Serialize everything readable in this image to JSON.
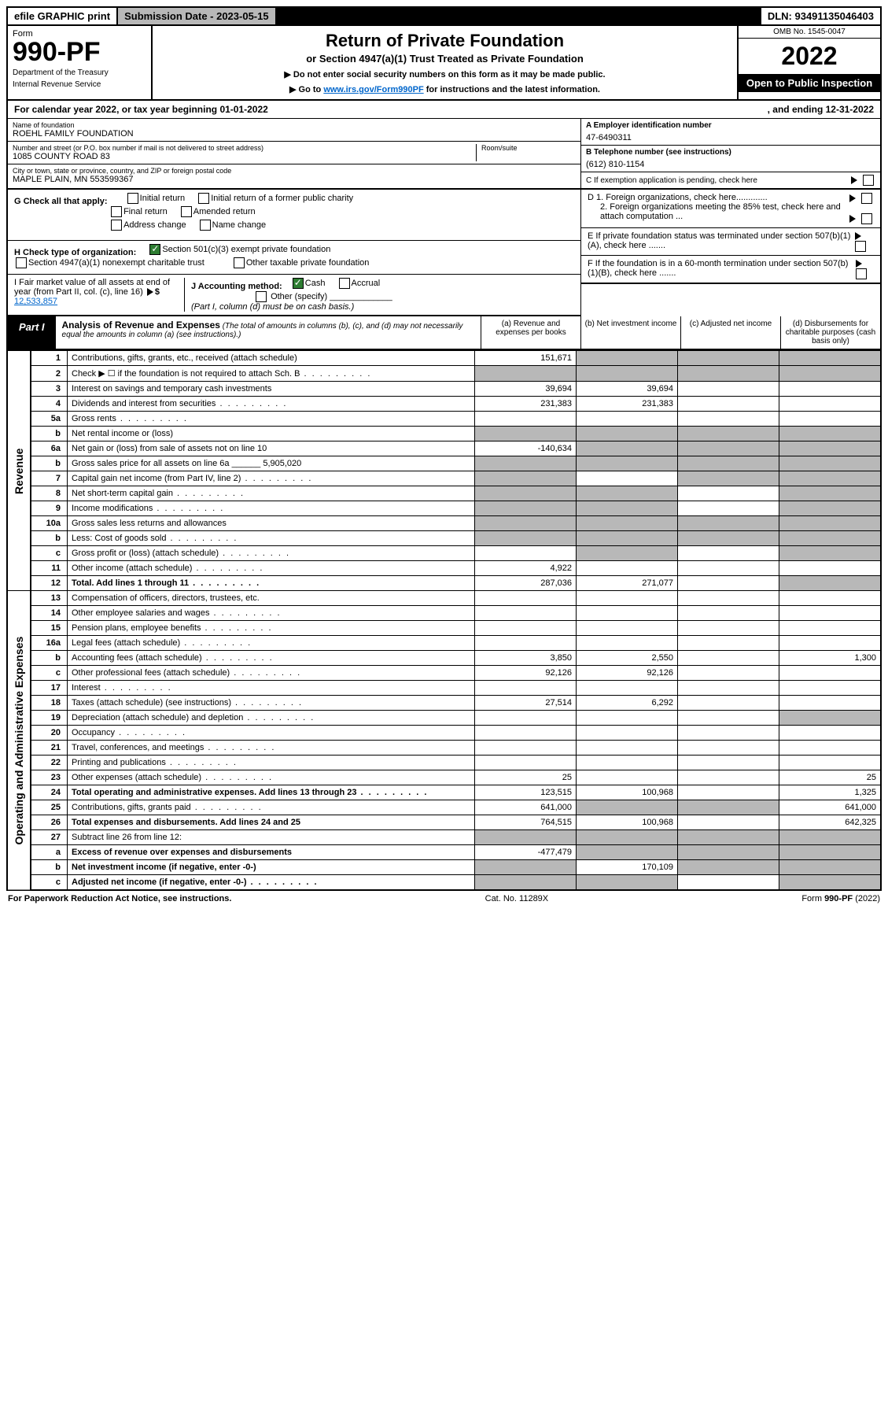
{
  "top": {
    "efile": "efile GRAPHIC print",
    "sub_label": "Submission Date - 2023-05-15",
    "dln": "DLN: 93491135046403"
  },
  "header": {
    "form": "Form",
    "number": "990-PF",
    "dept": "Department of the Treasury",
    "irs": "Internal Revenue Service",
    "title": "Return of Private Foundation",
    "sub1": "or Section 4947(a)(1) Trust Treated as Private Foundation",
    "sub2a": "▶ Do not enter social security numbers on this form as it may be made public.",
    "sub2b": "▶ Go to ",
    "link": "www.irs.gov/Form990PF",
    "sub2c": " for instructions and the latest information.",
    "omb": "OMB No. 1545-0047",
    "year": "2022",
    "inspect": "Open to Public Inspection"
  },
  "cal": {
    "left": "For calendar year 2022, or tax year beginning 01-01-2022",
    "right": ", and ending 12-31-2022"
  },
  "info": {
    "name_lbl": "Name of foundation",
    "name": "ROEHL FAMILY FOUNDATION",
    "addr_lbl": "Number and street (or P.O. box number if mail is not delivered to street address)",
    "addr": "1085 COUNTY ROAD 83",
    "room_lbl": "Room/suite",
    "city_lbl": "City or town, state or province, country, and ZIP or foreign postal code",
    "city": "MAPLE PLAIN, MN  553599367",
    "a_lbl": "A Employer identification number",
    "a_val": "47-6490311",
    "b_lbl": "B Telephone number (see instructions)",
    "b_val": "(612) 810-1154",
    "c_lbl": "C If exemption application is pending, check here",
    "d1": "D 1. Foreign organizations, check here.............",
    "d2": "2. Foreign organizations meeting the 85% test, check here and attach computation ...",
    "e": "E  If private foundation status was terminated under section 507(b)(1)(A), check here .......",
    "f": "F  If the foundation is in a 60-month termination under section 507(b)(1)(B), check here .......",
    "g": "G Check all that apply:",
    "g_opts": [
      "Initial return",
      "Initial return of a former public charity",
      "Final return",
      "Amended return",
      "Address change",
      "Name change"
    ],
    "h": "H Check type of organization:",
    "h1": "Section 501(c)(3) exempt private foundation",
    "h2": "Section 4947(a)(1) nonexempt charitable trust",
    "h3": "Other taxable private foundation",
    "i": "I Fair market value of all assets at end of year (from Part II, col. (c), line 16)",
    "i_val": "12,533,857",
    "j": "J Accounting method:",
    "j_opts": [
      "Cash",
      "Accrual"
    ],
    "j_other": "Other (specify)",
    "j_note": "(Part I, column (d) must be on cash basis.)"
  },
  "part1": {
    "label": "Part I",
    "title": "Analysis of Revenue and Expenses",
    "note": "(The total of amounts in columns (b), (c), and (d) may not necessarily equal the amounts in column (a) (see instructions).)",
    "col_a": "(a) Revenue and expenses per books",
    "col_b": "(b) Net investment income",
    "col_c": "(c) Adjusted net income",
    "col_d": "(d) Disbursements for charitable purposes (cash basis only)"
  },
  "side": {
    "rev": "Revenue",
    "exp": "Operating and Administrative Expenses"
  },
  "rows": [
    {
      "n": "1",
      "d": "Contributions, gifts, grants, etc., received (attach schedule)",
      "a": "151,671",
      "shade": [
        "b",
        "c",
        "d"
      ]
    },
    {
      "n": "2",
      "d": "Check ▶ ☐ if the foundation is not required to attach Sch. B",
      "allshade": true,
      "dots": true
    },
    {
      "n": "3",
      "d": "Interest on savings and temporary cash investments",
      "a": "39,694",
      "b": "39,694"
    },
    {
      "n": "4",
      "d": "Dividends and interest from securities",
      "a": "231,383",
      "b": "231,383",
      "dots": true
    },
    {
      "n": "5a",
      "d": "Gross rents",
      "dots": true
    },
    {
      "n": "b",
      "d": "Net rental income or (loss)",
      "shade": [
        "a",
        "b",
        "c",
        "d"
      ]
    },
    {
      "n": "6a",
      "d": "Net gain or (loss) from sale of assets not on line 10",
      "a": "-140,634",
      "shade": [
        "b",
        "c",
        "d"
      ]
    },
    {
      "n": "b",
      "d": "Gross sales price for all assets on line 6a ______ 5,905,020",
      "shade": [
        "a",
        "b",
        "c",
        "d"
      ]
    },
    {
      "n": "7",
      "d": "Capital gain net income (from Part IV, line 2)",
      "shade": [
        "a",
        "c",
        "d"
      ],
      "dots": true
    },
    {
      "n": "8",
      "d": "Net short-term capital gain",
      "shade": [
        "a",
        "b",
        "d"
      ],
      "dots": true
    },
    {
      "n": "9",
      "d": "Income modifications",
      "shade": [
        "a",
        "b",
        "d"
      ],
      "dots": true
    },
    {
      "n": "10a",
      "d": "Gross sales less returns and allowances",
      "shade": [
        "a",
        "b",
        "c",
        "d"
      ]
    },
    {
      "n": "b",
      "d": "Less: Cost of goods sold",
      "shade": [
        "a",
        "b",
        "c",
        "d"
      ],
      "dots": true
    },
    {
      "n": "c",
      "d": "Gross profit or (loss) (attach schedule)",
      "shade": [
        "b",
        "d"
      ],
      "dots": true
    },
    {
      "n": "11",
      "d": "Other income (attach schedule)",
      "a": "4,922",
      "dots": true
    },
    {
      "n": "12",
      "d": "Total. Add lines 1 through 11",
      "a": "287,036",
      "b": "271,077",
      "bold": true,
      "shade": [
        "d"
      ],
      "dots": true
    }
  ],
  "exp_rows": [
    {
      "n": "13",
      "d": "Compensation of officers, directors, trustees, etc."
    },
    {
      "n": "14",
      "d": "Other employee salaries and wages",
      "dots": true
    },
    {
      "n": "15",
      "d": "Pension plans, employee benefits",
      "dots": true
    },
    {
      "n": "16a",
      "d": "Legal fees (attach schedule)",
      "dots": true
    },
    {
      "n": "b",
      "d": "Accounting fees (attach schedule)",
      "a": "3,850",
      "b": "2,550",
      "dv": "1,300",
      "dots": true
    },
    {
      "n": "c",
      "d": "Other professional fees (attach schedule)",
      "a": "92,126",
      "b": "92,126",
      "dots": true
    },
    {
      "n": "17",
      "d": "Interest",
      "dots": true
    },
    {
      "n": "18",
      "d": "Taxes (attach schedule) (see instructions)",
      "a": "27,514",
      "b": "6,292",
      "dots": true
    },
    {
      "n": "19",
      "d": "Depreciation (attach schedule) and depletion",
      "shade": [
        "d"
      ],
      "dots": true
    },
    {
      "n": "20",
      "d": "Occupancy",
      "dots": true
    },
    {
      "n": "21",
      "d": "Travel, conferences, and meetings",
      "dots": true
    },
    {
      "n": "22",
      "d": "Printing and publications",
      "dots": true
    },
    {
      "n": "23",
      "d": "Other expenses (attach schedule)",
      "a": "25",
      "dv": "25",
      "dots": true
    },
    {
      "n": "24",
      "d": "Total operating and administrative expenses. Add lines 13 through 23",
      "a": "123,515",
      "b": "100,968",
      "dv": "1,325",
      "bold": true,
      "dots": true
    },
    {
      "n": "25",
      "d": "Contributions, gifts, grants paid",
      "a": "641,000",
      "dv": "641,000",
      "shade": [
        "b",
        "c"
      ],
      "dots": true
    },
    {
      "n": "26",
      "d": "Total expenses and disbursements. Add lines 24 and 25",
      "a": "764,515",
      "b": "100,968",
      "dv": "642,325",
      "bold": true
    },
    {
      "n": "27",
      "d": "Subtract line 26 from line 12:",
      "allshade": true
    },
    {
      "n": "a",
      "d": "Excess of revenue over expenses and disbursements",
      "a": "-477,479",
      "shade": [
        "b",
        "c",
        "d"
      ],
      "bold": true
    },
    {
      "n": "b",
      "d": "Net investment income (if negative, enter -0-)",
      "b": "170,109",
      "shade": [
        "a",
        "c",
        "d"
      ],
      "bold": true
    },
    {
      "n": "c",
      "d": "Adjusted net income (if negative, enter -0-)",
      "shade": [
        "a",
        "b",
        "d"
      ],
      "bold": true,
      "dots": true
    }
  ],
  "footer": {
    "l": "For Paperwork Reduction Act Notice, see instructions.",
    "m": "Cat. No. 11289X",
    "r": "Form 990-PF (2022)"
  }
}
